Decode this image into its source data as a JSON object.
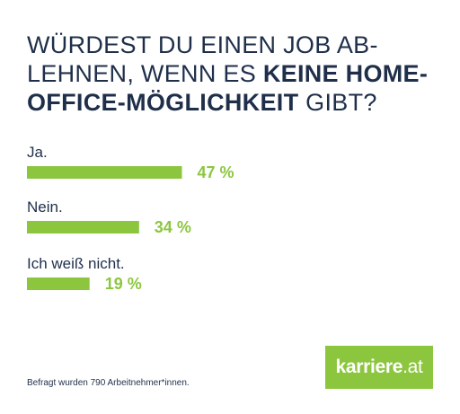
{
  "title": {
    "part1": "WÜRDEST DU EINEN JOB AB-LEHNEN, WENN ES ",
    "bold": "KEINE HOME-OFFICE-MÖGLICHKEIT",
    "part2": " GIBT?"
  },
  "colors": {
    "bar": "#8cc63f",
    "text": "#1f2f4a",
    "logo_bg": "#8cc63f"
  },
  "chart_data": {
    "type": "bar",
    "orientation": "horizontal",
    "categories": [
      "Ja.",
      "Nein.",
      "Ich weiß nicht."
    ],
    "values": [
      47,
      34,
      19
    ],
    "value_labels": [
      "47 %",
      "34 %",
      "19 %"
    ],
    "xlim": [
      0,
      100
    ]
  },
  "footnote": "Befragt wurden 790 Arbeitnehmer*innen.",
  "logo": {
    "name": "karriere",
    "tld": ".at"
  }
}
